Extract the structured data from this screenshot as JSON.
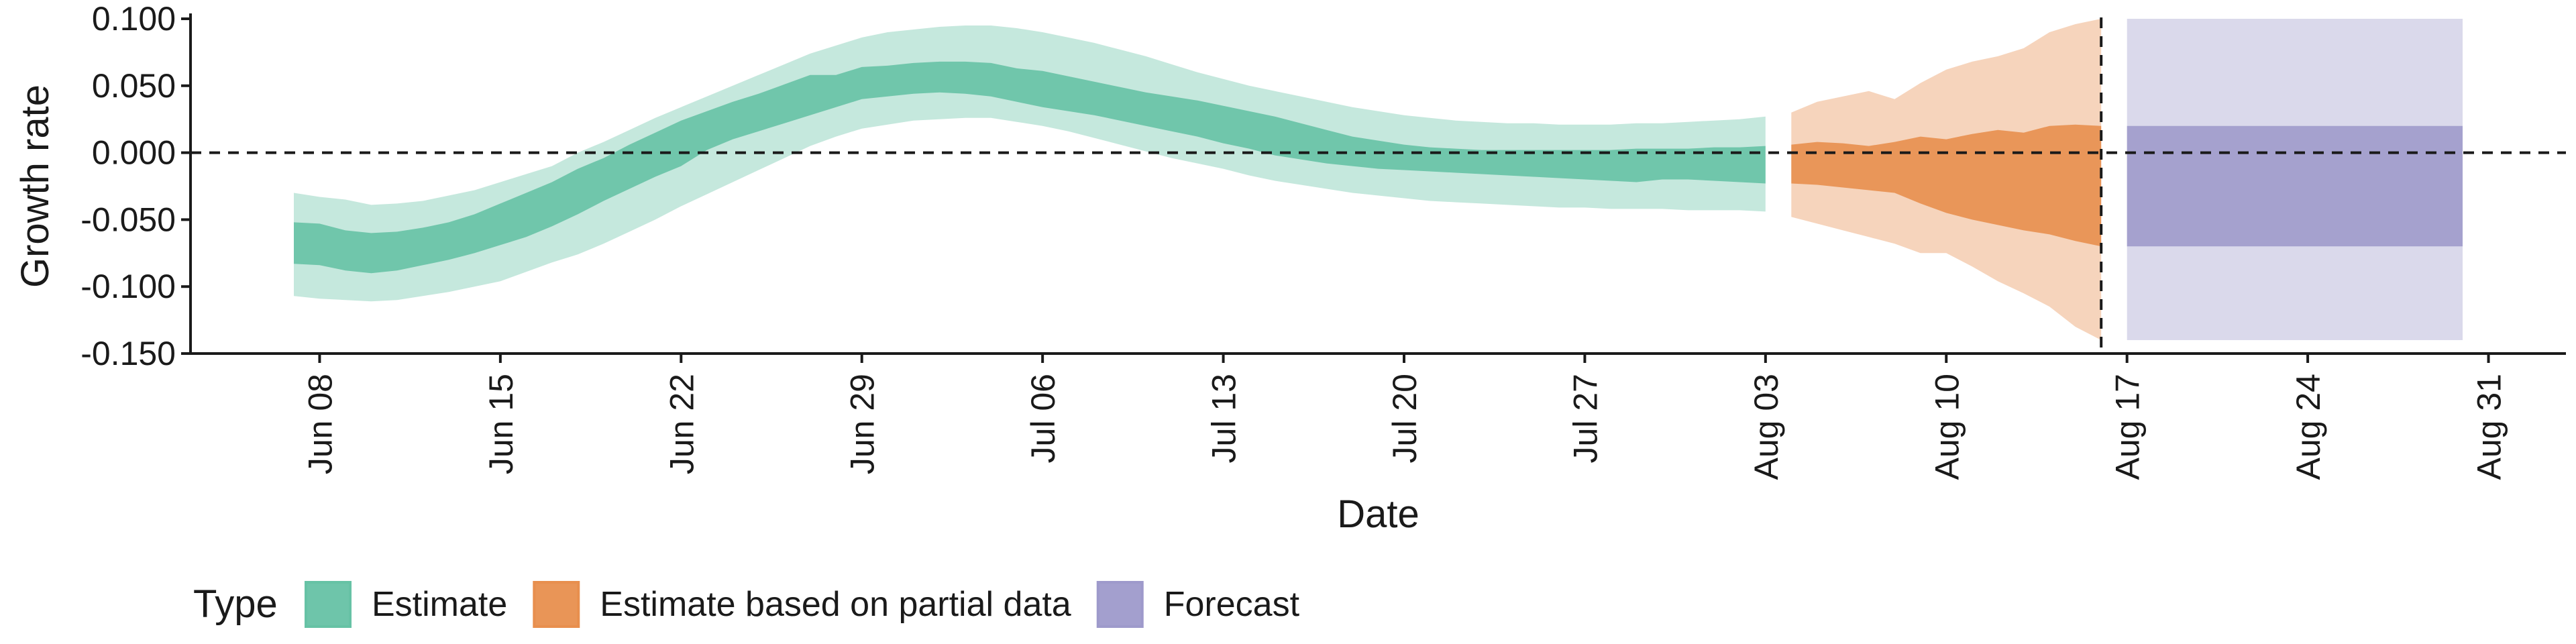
{
  "chart_data": {
    "type": "area",
    "xlabel": "Date",
    "ylabel": "Growth rate",
    "ylim": [
      -0.15,
      0.1
    ],
    "xlim": [
      "2020-06-03",
      "2020-09-03"
    ],
    "x_tick_dates": [
      "2020-06-08",
      "2020-06-15",
      "2020-06-22",
      "2020-06-29",
      "2020-07-06",
      "2020-07-13",
      "2020-07-20",
      "2020-07-27",
      "2020-08-03",
      "2020-08-10",
      "2020-08-17",
      "2020-08-24",
      "2020-08-31"
    ],
    "x_tick_labels": [
      "Jun 08",
      "Jun 15",
      "Jun 22",
      "Jun 29",
      "Jul 06",
      "Jul 13",
      "Jul 20",
      "Jul 27",
      "Aug 03",
      "Aug 10",
      "Aug 17",
      "Aug 24",
      "Aug 31"
    ],
    "y_ticks": [
      0.1,
      0.05,
      0,
      -0.05,
      -0.1,
      -0.15
    ],
    "y_tick_labels": [
      "0.100",
      "0.050",
      "0.000",
      "-0.050",
      "-0.100",
      "-0.150"
    ],
    "reference_lines": {
      "horizontal_y": 0,
      "vertical_date": "2020-08-16"
    },
    "grid": false,
    "legend": {
      "title": "Type",
      "position": "bottom-left",
      "items": [
        {
          "label": "Estimate",
          "color": "#66c2a5"
        },
        {
          "label": "Estimate based on partial data",
          "color": "#e88f4e"
        },
        {
          "label": "Forecast",
          "color": "#9e9acb"
        }
      ]
    },
    "series": [
      {
        "name": "Estimate",
        "color": "#66c2a5",
        "x": [
          "2020-06-07",
          "2020-06-08",
          "2020-06-09",
          "2020-06-10",
          "2020-06-11",
          "2020-06-12",
          "2020-06-13",
          "2020-06-14",
          "2020-06-15",
          "2020-06-16",
          "2020-06-17",
          "2020-06-18",
          "2020-06-19",
          "2020-06-20",
          "2020-06-21",
          "2020-06-22",
          "2020-06-23",
          "2020-06-24",
          "2020-06-25",
          "2020-06-26",
          "2020-06-27",
          "2020-06-28",
          "2020-06-29",
          "2020-06-30",
          "2020-07-01",
          "2020-07-02",
          "2020-07-03",
          "2020-07-04",
          "2020-07-05",
          "2020-07-06",
          "2020-07-07",
          "2020-07-08",
          "2020-07-09",
          "2020-07-10",
          "2020-07-11",
          "2020-07-12",
          "2020-07-13",
          "2020-07-14",
          "2020-07-15",
          "2020-07-16",
          "2020-07-17",
          "2020-07-18",
          "2020-07-19",
          "2020-07-20",
          "2020-07-21",
          "2020-07-22",
          "2020-07-23",
          "2020-07-24",
          "2020-07-25",
          "2020-07-26",
          "2020-07-27",
          "2020-07-28",
          "2020-07-29",
          "2020-07-30",
          "2020-07-31",
          "2020-08-01",
          "2020-08-02",
          "2020-08-03"
        ],
        "lower_90": [
          -0.107,
          -0.109,
          -0.11,
          -0.111,
          -0.11,
          -0.107,
          -0.104,
          -0.1,
          -0.096,
          -0.089,
          -0.082,
          -0.076,
          -0.068,
          -0.059,
          -0.05,
          -0.04,
          -0.031,
          -0.022,
          -0.013,
          -0.004,
          0.005,
          0.012,
          0.018,
          0.021,
          0.024,
          0.025,
          0.026,
          0.026,
          0.023,
          0.02,
          0.016,
          0.011,
          0.006,
          0.001,
          -0.004,
          -0.008,
          -0.012,
          -0.017,
          -0.021,
          -0.024,
          -0.027,
          -0.03,
          -0.032,
          -0.034,
          -0.036,
          -0.037,
          -0.038,
          -0.039,
          -0.04,
          -0.041,
          -0.041,
          -0.042,
          -0.042,
          -0.042,
          -0.043,
          -0.043,
          -0.043,
          -0.044
        ],
        "upper_90": [
          -0.03,
          -0.033,
          -0.035,
          -0.039,
          -0.038,
          -0.036,
          -0.032,
          -0.028,
          -0.022,
          -0.016,
          -0.01,
          0.0,
          0.008,
          0.017,
          0.026,
          0.034,
          0.042,
          0.05,
          0.058,
          0.066,
          0.074,
          0.08,
          0.086,
          0.09,
          0.092,
          0.094,
          0.095,
          0.095,
          0.093,
          0.09,
          0.086,
          0.082,
          0.077,
          0.072,
          0.066,
          0.06,
          0.055,
          0.05,
          0.046,
          0.042,
          0.038,
          0.034,
          0.031,
          0.028,
          0.026,
          0.024,
          0.023,
          0.022,
          0.022,
          0.021,
          0.021,
          0.021,
          0.022,
          0.022,
          0.023,
          0.024,
          0.025,
          0.027
        ],
        "lower_50": [
          -0.083,
          -0.084,
          -0.088,
          -0.09,
          -0.088,
          -0.084,
          -0.08,
          -0.075,
          -0.069,
          -0.063,
          -0.055,
          -0.046,
          -0.036,
          -0.027,
          -0.018,
          -0.01,
          0.002,
          0.01,
          0.016,
          0.022,
          0.028,
          0.034,
          0.04,
          0.042,
          0.044,
          0.045,
          0.044,
          0.042,
          0.038,
          0.034,
          0.031,
          0.028,
          0.024,
          0.02,
          0.016,
          0.012,
          0.007,
          0.003,
          -0.002,
          -0.005,
          -0.008,
          -0.01,
          -0.012,
          -0.013,
          -0.014,
          -0.015,
          -0.016,
          -0.017,
          -0.018,
          -0.019,
          -0.02,
          -0.021,
          -0.022,
          -0.02,
          -0.02,
          -0.021,
          -0.022,
          -0.023
        ],
        "upper_50": [
          -0.052,
          -0.053,
          -0.058,
          -0.06,
          -0.059,
          -0.056,
          -0.052,
          -0.046,
          -0.038,
          -0.03,
          -0.022,
          -0.012,
          -0.004,
          0.006,
          0.015,
          0.024,
          0.031,
          0.038,
          0.044,
          0.051,
          0.058,
          0.058,
          0.064,
          0.065,
          0.067,
          0.068,
          0.068,
          0.067,
          0.063,
          0.061,
          0.057,
          0.053,
          0.049,
          0.045,
          0.042,
          0.039,
          0.035,
          0.031,
          0.027,
          0.022,
          0.017,
          0.012,
          0.009,
          0.006,
          0.004,
          0.003,
          0.002,
          0.002,
          0.002,
          0.002,
          0.002,
          0.002,
          0.003,
          0.003,
          0.003,
          0.004,
          0.004,
          0.005
        ]
      },
      {
        "name": "Estimate based on partial data",
        "color": "#e88f4e",
        "x": [
          "2020-08-04",
          "2020-08-05",
          "2020-08-06",
          "2020-08-07",
          "2020-08-08",
          "2020-08-09",
          "2020-08-10",
          "2020-08-11",
          "2020-08-12",
          "2020-08-13",
          "2020-08-14",
          "2020-08-15",
          "2020-08-16"
        ],
        "lower_90": [
          -0.048,
          -0.053,
          -0.058,
          -0.063,
          -0.068,
          -0.075,
          -0.075,
          -0.085,
          -0.096,
          -0.105,
          -0.115,
          -0.13,
          -0.14
        ],
        "upper_90": [
          0.03,
          0.038,
          0.042,
          0.046,
          0.04,
          0.052,
          0.062,
          0.068,
          0.072,
          0.078,
          0.09,
          0.096,
          0.1
        ],
        "lower_50": [
          -0.023,
          -0.024,
          -0.026,
          -0.028,
          -0.03,
          -0.038,
          -0.045,
          -0.05,
          -0.054,
          -0.058,
          -0.061,
          -0.066,
          -0.07
        ],
        "upper_50": [
          0.006,
          0.008,
          0.007,
          0.005,
          0.008,
          0.012,
          0.01,
          0.014,
          0.017,
          0.015,
          0.02,
          0.021,
          0.02
        ]
      },
      {
        "name": "Forecast",
        "color": "#9e9acb",
        "x": [
          "2020-08-17",
          "2020-08-30"
        ],
        "lower_90": [
          -0.14,
          -0.14
        ],
        "upper_90": [
          0.1,
          0.1
        ],
        "lower_50": [
          -0.07,
          -0.07
        ],
        "upper_50": [
          0.02,
          0.02
        ]
      }
    ]
  }
}
